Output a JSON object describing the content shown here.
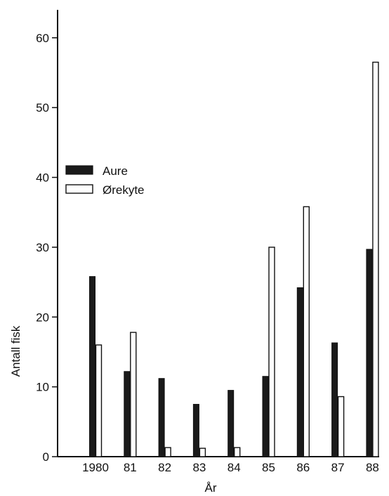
{
  "chart_data": {
    "type": "bar",
    "title": "",
    "xlabel": "År",
    "ylabel": "Antall fisk",
    "categories": [
      "1980",
      "81",
      "82",
      "83",
      "84",
      "85",
      "86",
      "87",
      "88"
    ],
    "series": [
      {
        "name": "Aure",
        "values": [
          25.8,
          12.2,
          11.2,
          7.5,
          9.5,
          11.5,
          24.2,
          16.3,
          29.7
        ],
        "fill": "#1a1a1a"
      },
      {
        "name": "Ørekyte",
        "values": [
          16.0,
          17.8,
          1.3,
          1.2,
          1.3,
          30.0,
          35.8,
          8.6,
          56.5
        ],
        "fill": "#ffffff"
      }
    ],
    "yticks": [
      0,
      10,
      20,
      30,
      40,
      50,
      60
    ],
    "ylim": [
      0,
      64
    ],
    "grid": false,
    "legend_position": "left-middle"
  }
}
